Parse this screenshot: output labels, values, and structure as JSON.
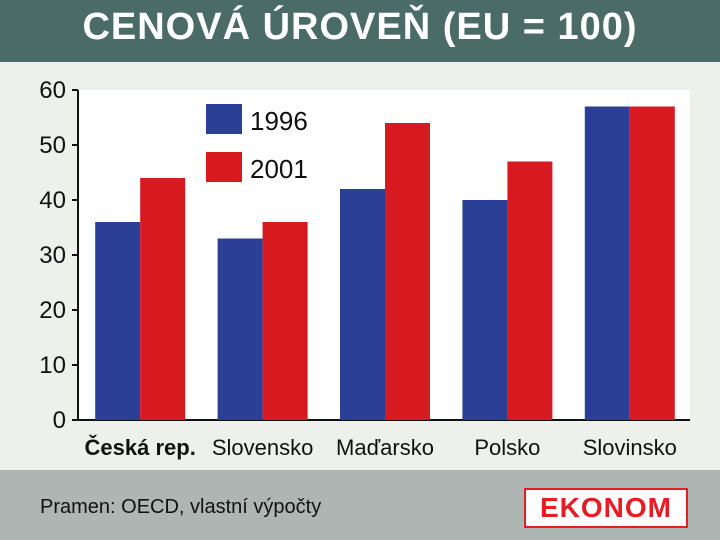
{
  "title": "CENOVÁ ÚROVEŇ (EU = 100)",
  "source": "Pramen: OECD, vlastní výpočty",
  "logo": "EKONOM",
  "chart_data": {
    "type": "bar",
    "categories": [
      "Česká rep.",
      "Slovensko",
      "Maďarsko",
      "Polsko",
      "Slovinsko"
    ],
    "series": [
      {
        "name": "1996",
        "values": [
          36,
          33,
          42,
          40,
          57
        ],
        "color": "#2b3f97"
      },
      {
        "name": "2001",
        "values": [
          44,
          36,
          54,
          47,
          57
        ],
        "color": "#d71920"
      }
    ],
    "yticks": [
      0,
      10,
      20,
      30,
      40,
      50,
      60
    ],
    "ylim": [
      0,
      60
    ],
    "grid": false,
    "legend_position": "top-left"
  }
}
